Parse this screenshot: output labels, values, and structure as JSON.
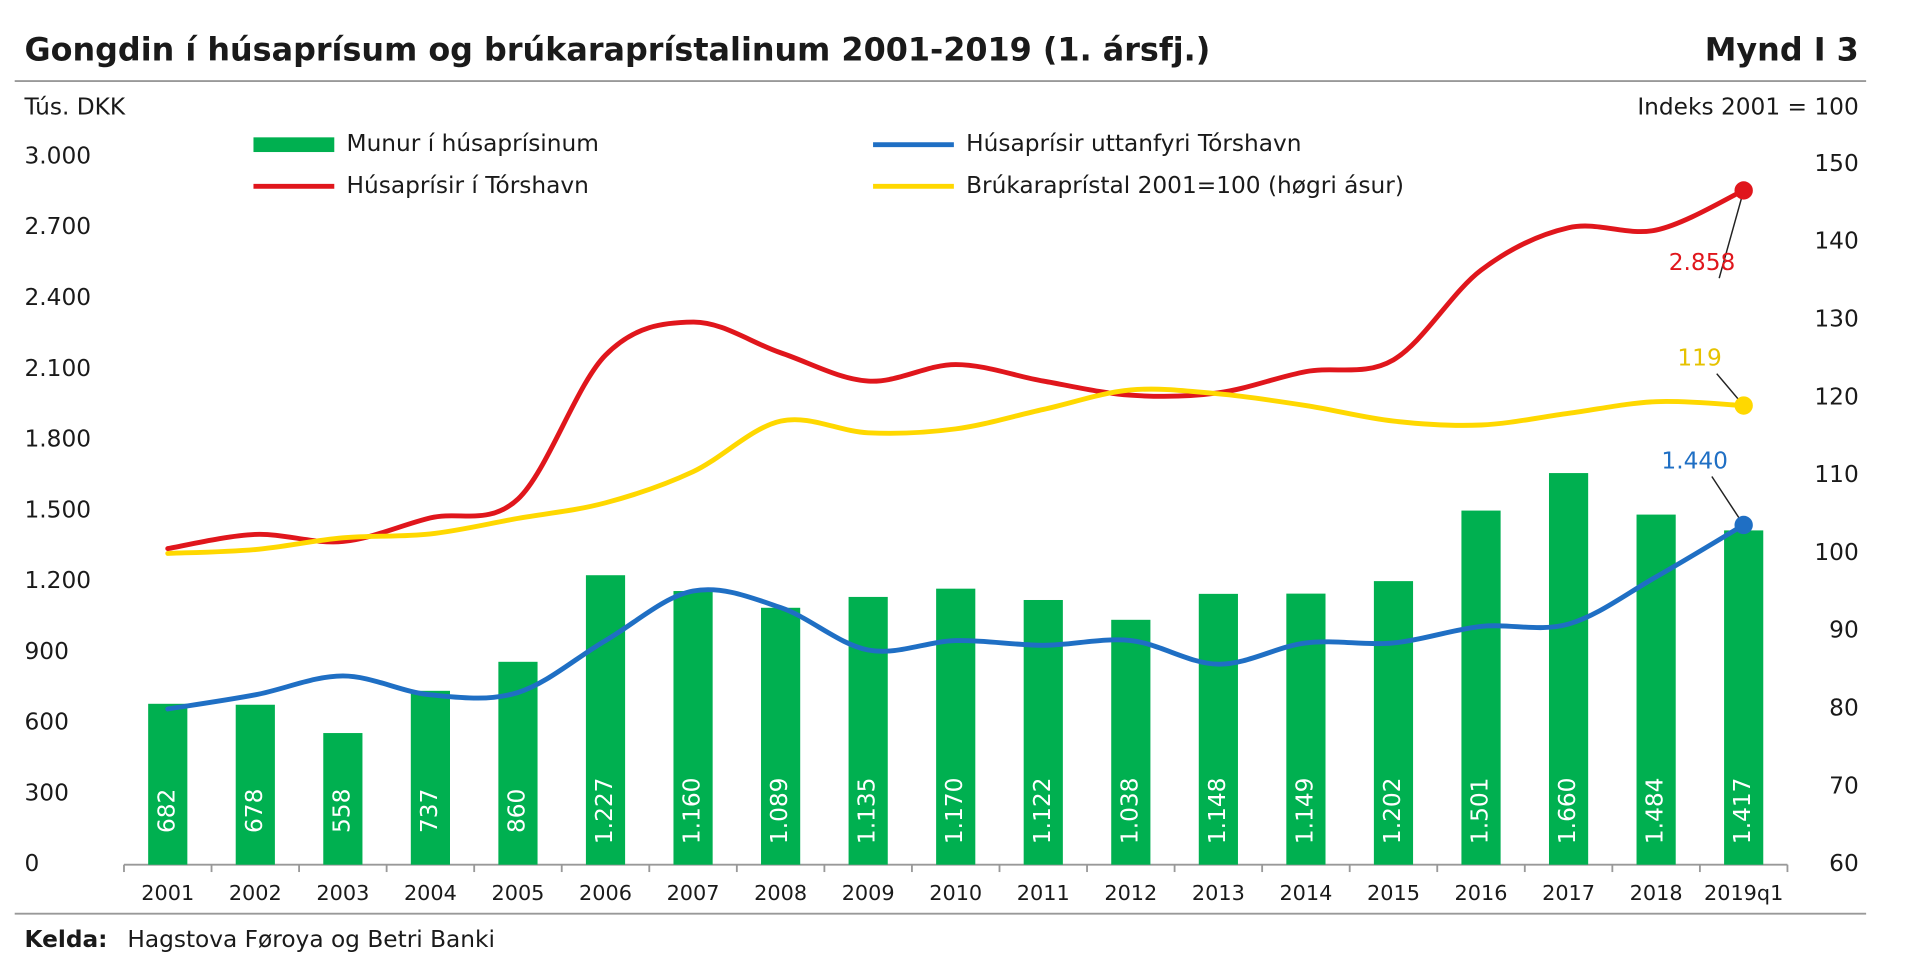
{
  "chart_data": {
    "type": "combo",
    "title": "Gongdin í húsaprísum og brúkaraprístalinum 2001-2019 (1. ársfj.)",
    "figure_label": "Mynd I 3",
    "ylabel": "Tús. DKK",
    "y2label": "Indeks 2001 = 100",
    "source_label": "Kelda:",
    "source_text": "Hagstova Føroya og Betri Banki",
    "categories": [
      "2001",
      "2002",
      "2003",
      "2004",
      "2005",
      "2006",
      "2007",
      "2008",
      "2009",
      "2010",
      "2011",
      "2012",
      "2013",
      "2014",
      "2015",
      "2016",
      "2017",
      "2018",
      "2019q1"
    ],
    "ylim": [
      0,
      3000
    ],
    "yticks": [
      0,
      300,
      600,
      900,
      {
        "value": 1200,
        "label": "1.200"
      },
      {
        "value": 1500,
        "label": "1.500"
      },
      {
        "value": 1800,
        "label": "1.800"
      },
      {
        "value": 2100,
        "label": "2.100"
      },
      {
        "value": 2400,
        "label": "2.400"
      },
      {
        "value": 2700,
        "label": "2.700"
      },
      {
        "value": 3000,
        "label": "3.000"
      }
    ],
    "y2lim": [
      60,
      150
    ],
    "y2ticks": [
      60,
      70,
      80,
      90,
      100,
      110,
      120,
      130,
      140,
      150
    ],
    "legend": "top",
    "series": [
      {
        "name": "Munur í húsaprísinum",
        "type": "bar",
        "color": "#00b050",
        "values": [
          682,
          678,
          558,
          737,
          860,
          1227,
          1160,
          1089,
          1135,
          1170,
          1122,
          1038,
          1148,
          1149,
          1202,
          1501,
          1660,
          1484,
          1417
        ],
        "value_labels": [
          "682",
          "678",
          "558",
          "737",
          "860",
          "1.227",
          "1.160",
          "1.089",
          "1.135",
          "1.170",
          "1.122",
          "1.038",
          "1.148",
          "1.149",
          "1.202",
          "1.501",
          "1.660",
          "1.484",
          "1.417"
        ]
      },
      {
        "name": "Húsaprísir uttanfyri Tórshavn",
        "type": "line",
        "color": "#1f6fc4",
        "values": [
          660,
          720,
          800,
          720,
          730,
          950,
          1160,
          1090,
          910,
          950,
          930,
          950,
          850,
          940,
          940,
          1010,
          1020,
          1220,
          1440
        ],
        "value_labels": [
          null,
          null,
          null,
          null,
          null,
          null,
          null,
          null,
          null,
          null,
          null,
          null,
          null,
          null,
          null,
          null,
          null,
          null,
          "1.440"
        ]
      },
      {
        "name": "Húsaprísir í Tórshavn",
        "type": "line",
        "color": "#e0161c",
        "values": [
          1340,
          1400,
          1370,
          1470,
          1550,
          2160,
          2300,
          2170,
          2050,
          2120,
          2050,
          1990,
          2000,
          2090,
          2140,
          2520,
          2700,
          2690,
          2858
        ],
        "value_labels": [
          null,
          null,
          null,
          null,
          null,
          null,
          null,
          null,
          null,
          null,
          null,
          null,
          null,
          null,
          null,
          null,
          null,
          null,
          "2.858"
        ]
      },
      {
        "name": "Brúkaraprístal 2001=100 (høgri ásur)",
        "type": "line",
        "axis": "y2",
        "color": "#ffd800",
        "values": [
          100,
          100.5,
          102,
          102.5,
          104.5,
          106.5,
          110.5,
          117,
          115.5,
          116,
          118.5,
          121,
          120.5,
          119,
          117,
          116.5,
          118,
          119.5,
          119
        ],
        "value_labels": [
          null,
          null,
          null,
          null,
          null,
          null,
          null,
          null,
          null,
          null,
          null,
          null,
          null,
          null,
          null,
          null,
          null,
          null,
          "119"
        ]
      }
    ]
  }
}
